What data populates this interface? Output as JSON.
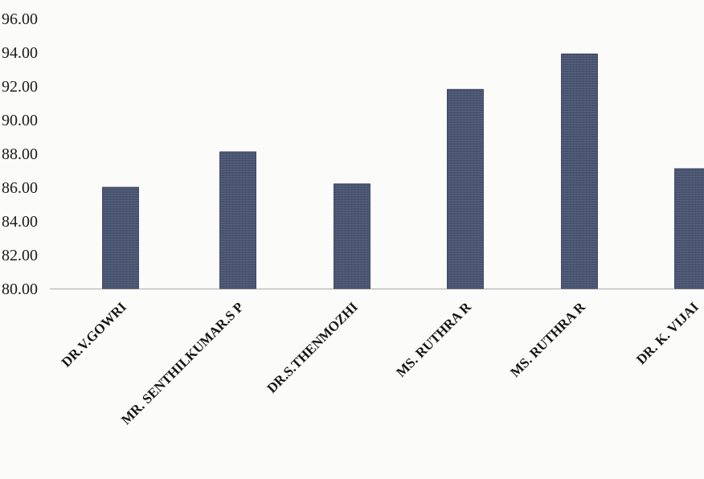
{
  "chart_data": {
    "type": "bar",
    "title": "",
    "xlabel": "",
    "ylabel": "",
    "categories": [
      "DR.V.GOWRI",
      "MR. SENTHILKUMAR.S P",
      "DR.S.THENMOZHI",
      "MS. RUTHRA R",
      "MS. RUTHRA R",
      "DR. K. VIJAI"
    ],
    "values": [
      86.0,
      88.1,
      86.2,
      91.8,
      93.9,
      87.1
    ],
    "ylim": [
      80,
      96
    ],
    "yticks": [
      "80.00",
      "82.00",
      "84.00",
      "86.00",
      "88.00",
      "90.00",
      "92.00",
      "94.00",
      "96.00"
    ],
    "grid": false,
    "legend": "none",
    "bar_color": "#4a5571",
    "baseline_color": "#b8b8b8"
  }
}
